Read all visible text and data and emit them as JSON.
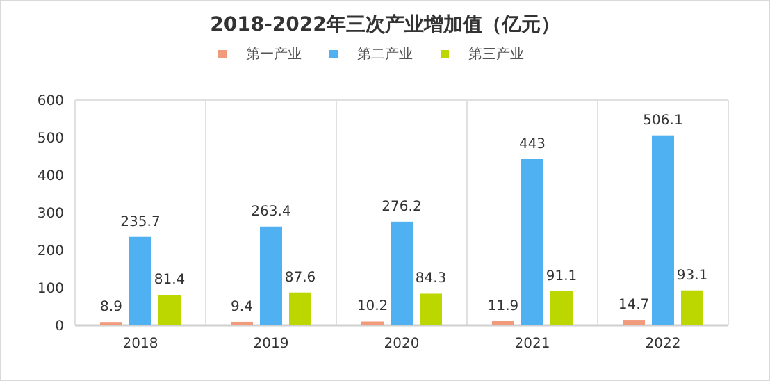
{
  "chart_data": {
    "type": "bar",
    "title": "2018-2022年三次产业增加值（亿元）",
    "categories": [
      "2018",
      "2019",
      "2020",
      "2021",
      "2022"
    ],
    "series": [
      {
        "name": "第一产业",
        "color": "#f29a7c",
        "values": [
          8.9,
          9.4,
          10.2,
          11.9,
          14.7
        ]
      },
      {
        "name": "第二产业",
        "color": "#4fb0f2",
        "values": [
          235.7,
          263.4,
          276.2,
          443,
          506.1
        ]
      },
      {
        "name": "第三产业",
        "color": "#bcd600",
        "values": [
          81.4,
          87.6,
          84.3,
          91.1,
          93.1
        ]
      }
    ],
    "ylim": [
      0,
      600
    ],
    "yticks": [
      0,
      100,
      200,
      300,
      400,
      500,
      600
    ],
    "grid": "x",
    "legend": "top",
    "data_labels": true
  }
}
